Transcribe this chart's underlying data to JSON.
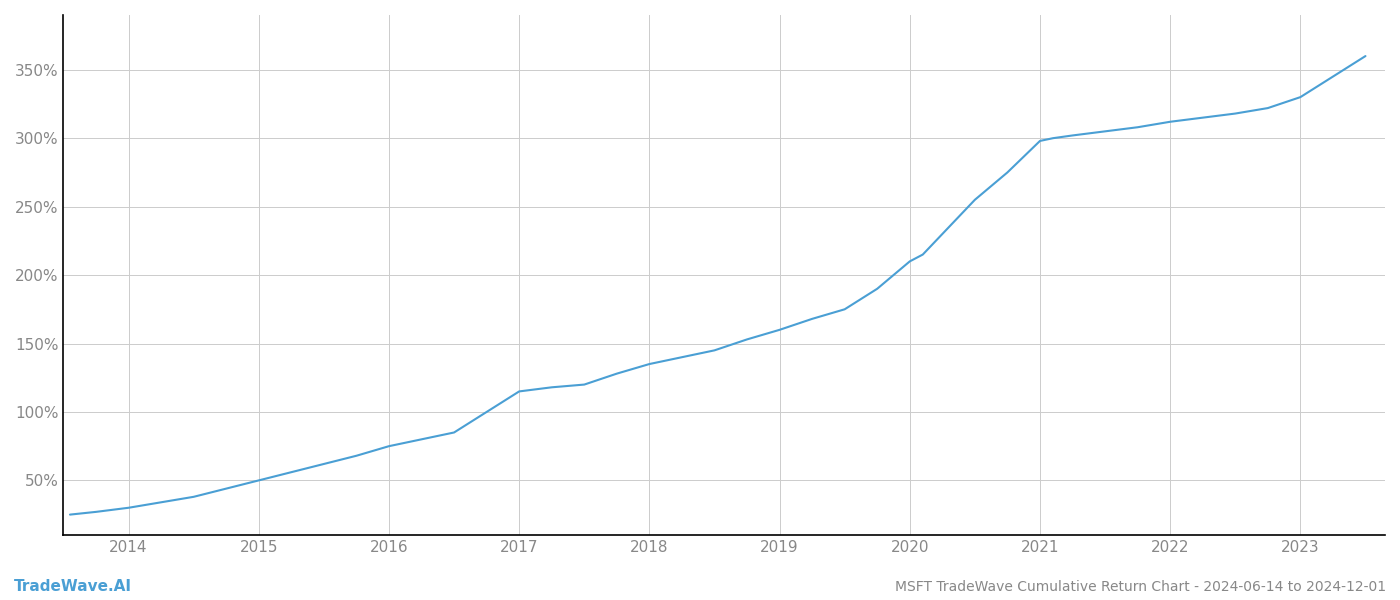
{
  "title": "MSFT TradeWave Cumulative Return Chart - 2024-06-14 to 2024-12-01",
  "watermark": "TradeWave.AI",
  "line_color": "#4a9fd4",
  "background_color": "#ffffff",
  "grid_color": "#cccccc",
  "x_years": [
    2014,
    2015,
    2016,
    2017,
    2018,
    2019,
    2020,
    2021,
    2022,
    2023
  ],
  "data_x": [
    2013.55,
    2013.75,
    2014.0,
    2014.25,
    2014.5,
    2014.75,
    2015.0,
    2015.25,
    2015.5,
    2015.75,
    2016.0,
    2016.25,
    2016.5,
    2016.75,
    2017.0,
    2017.25,
    2017.5,
    2017.75,
    2018.0,
    2018.25,
    2018.5,
    2018.75,
    2019.0,
    2019.25,
    2019.5,
    2019.75,
    2020.0,
    2020.1,
    2020.25,
    2020.5,
    2020.75,
    2021.0,
    2021.1,
    2021.25,
    2021.5,
    2021.75,
    2022.0,
    2022.25,
    2022.5,
    2022.75,
    2023.0,
    2023.25,
    2023.5
  ],
  "data_y": [
    25,
    27,
    30,
    34,
    38,
    44,
    50,
    56,
    62,
    68,
    75,
    80,
    85,
    100,
    115,
    118,
    120,
    128,
    135,
    140,
    145,
    153,
    160,
    168,
    175,
    190,
    210,
    215,
    230,
    255,
    275,
    298,
    300,
    302,
    305,
    308,
    312,
    315,
    318,
    322,
    330,
    345,
    360
  ],
  "ylim_min": 10,
  "ylim_max": 390,
  "xlim_min": 2013.5,
  "xlim_max": 2023.65,
  "yticks": [
    50,
    100,
    150,
    200,
    250,
    300,
    350
  ],
  "title_fontsize": 10,
  "watermark_fontsize": 11,
  "tick_fontsize": 11,
  "tick_color": "#888888",
  "spine_color": "#000000",
  "left_spine_color": "#000000"
}
